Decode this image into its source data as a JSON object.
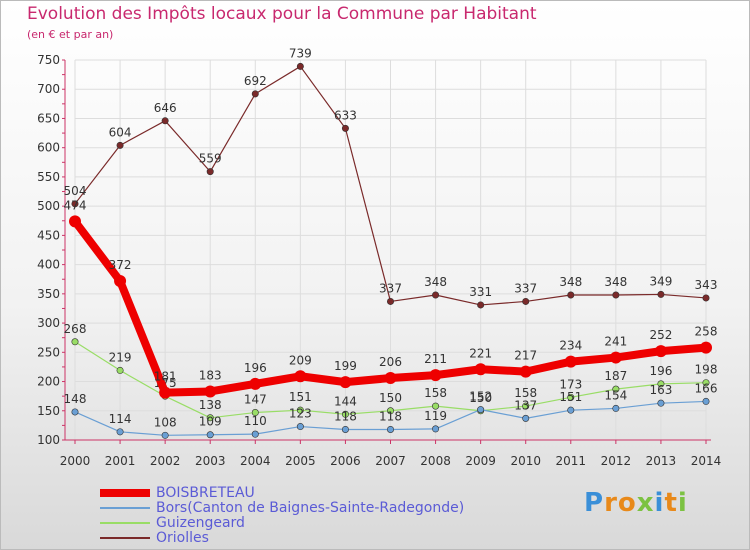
{
  "chart_data": {
    "type": "line",
    "title": "Evolution des Impôts locaux pour la Commune par Habitant",
    "subtitle": "(en € et par an)",
    "x": [
      "2000",
      "2001",
      "2002",
      "2003",
      "2004",
      "2005",
      "2006",
      "2007",
      "2008",
      "2009",
      "2010",
      "2011",
      "2012",
      "2013",
      "2014"
    ],
    "ylim": [
      100,
      750
    ],
    "yticks": [
      100,
      150,
      200,
      250,
      300,
      350,
      400,
      450,
      500,
      550,
      600,
      650,
      700,
      750
    ],
    "series": [
      {
        "name": "Oriolles",
        "color": "#7a2a2a",
        "values": [
          504,
          604,
          646,
          559,
          692,
          739,
          633,
          337,
          348,
          331,
          337,
          348,
          348,
          349,
          343
        ]
      },
      {
        "name": "Guizengeard",
        "color": "#99dd66",
        "values": [
          268,
          219,
          175,
          138,
          147,
          151,
          144,
          150,
          158,
          150,
          158,
          173,
          187,
          196,
          198
        ]
      },
      {
        "name": "Bors(Canton de Baignes-Sainte-Radegonde)",
        "color": "#6a9fd4",
        "values": [
          148,
          114,
          108,
          109,
          110,
          123,
          118,
          118,
          119,
          152,
          137,
          151,
          154,
          163,
          166
        ]
      },
      {
        "name": "BOISBRETEAU",
        "color": "#ee0000",
        "values": [
          474,
          372,
          181,
          183,
          196,
          209,
          199,
          206,
          211,
          221,
          217,
          234,
          241,
          252,
          258
        ]
      }
    ]
  },
  "legend": [
    {
      "name": "BOISBRETEAU",
      "color": "#ee0000"
    },
    {
      "name": "Bors(Canton de Baignes-Sainte-Radegonde)",
      "color": "#6a9fd4"
    },
    {
      "name": "Guizengeard",
      "color": "#99dd66"
    },
    {
      "name": "Oriolles",
      "color": "#7a2a2a"
    }
  ],
  "logo": {
    "letters": [
      "P",
      "r",
      "o",
      "x",
      "i",
      "t",
      "i"
    ],
    "colors": [
      "#3a8fd8",
      "#e8891a",
      "#e8891a",
      "#7cc242",
      "#3a8fd8",
      "#e8891a",
      "#7cc242"
    ]
  }
}
